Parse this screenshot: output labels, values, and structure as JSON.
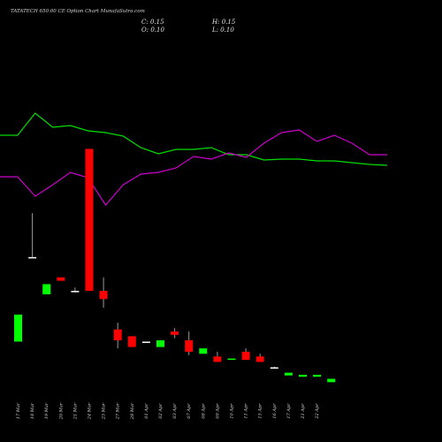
{
  "header": {
    "title": "TATATECH 650.00  CE Option  Chart MunafaSutra.com",
    "close": "C: 0.15",
    "open": "O: 0.10",
    "high": "H: 0.15",
    "low": "L: 0.10"
  },
  "colors": {
    "background": "#000000",
    "up": "#00ff00",
    "down": "#ff0000",
    "neutral": "#ffffff",
    "line_green": "#00dd00",
    "line_magenta": "#cc00cc",
    "wick": "#999999"
  },
  "chart_data": [
    {
      "type": "line",
      "title": "",
      "x": [
        "17 Mar",
        "18 Mar",
        "19 Mar",
        "20 Mar",
        "21 Mar",
        "24 Mar",
        "25 Mar",
        "26 Mar",
        "27 Mar",
        "28 Mar",
        "01 Apr",
        "02 Apr",
        "03 Apr",
        "04 Apr",
        "07 Apr",
        "08 Apr",
        "09 Apr",
        "11 Apr",
        "15 Apr",
        "16 Apr",
        "17 Apr",
        "21 Apr",
        "22 Apr"
      ],
      "series": [
        {
          "name": "",
          "color": "green",
          "values": [
            153,
            153,
            128,
            144,
            142,
            148,
            150,
            154,
            167,
            174,
            169,
            169,
            167,
            175,
            175,
            181,
            180,
            180,
            182,
            182,
            184,
            186,
            187
          ]
        },
        {
          "name": "",
          "color": "magenta",
          "values": [
            200,
            200,
            222,
            209,
            195,
            201,
            232,
            209,
            197,
            195,
            190,
            177,
            180,
            173,
            178,
            162,
            150,
            147,
            160,
            153,
            162,
            175,
            175
          ]
        }
      ],
      "ylim": [
        120,
        240
      ],
      "grid": false,
      "legend": "none"
    },
    {
      "type": "candlestick",
      "title": "",
      "categories": [
        "17 Mar",
        "18 Mar",
        "19 Mar",
        "20 Mar",
        "21 Mar",
        "24 Mar",
        "25 Mar",
        "27 Mar",
        "28 Mar",
        "01 Apr",
        "02 Apr",
        "03 Apr",
        "07 Apr",
        "08 Apr",
        "09 Apr",
        "10 Apr",
        "11 Apr",
        "15 Apr",
        "16 Apr",
        "17 Apr",
        "18 Apr",
        "21 Apr",
        "22 Apr"
      ],
      "candles": [
        {
          "open": 0.7,
          "close": 1.1,
          "high": 1.1,
          "low": 0.7,
          "dir": "up"
        },
        {
          "open": 1.95,
          "close": 1.95,
          "high": 2.6,
          "low": 1.95,
          "dir": "neutral"
        },
        {
          "open": 1.4,
          "close": 1.55,
          "high": 1.55,
          "low": 1.4,
          "dir": "up"
        },
        {
          "open": 1.65,
          "close": 1.6,
          "high": 1.65,
          "low": 1.6,
          "dir": "down"
        },
        {
          "open": 1.45,
          "close": 1.45,
          "high": 1.5,
          "low": 1.43,
          "dir": "neutral"
        },
        {
          "open": 3.55,
          "close": 1.45,
          "high": 3.55,
          "low": 1.45,
          "dir": "down"
        },
        {
          "open": 1.45,
          "close": 1.33,
          "high": 1.65,
          "low": 1.2,
          "dir": "down"
        },
        {
          "open": 0.88,
          "close": 0.72,
          "high": 0.98,
          "low": 0.6,
          "dir": "down"
        },
        {
          "open": 0.78,
          "close": 0.62,
          "high": 0.78,
          "low": 0.62,
          "dir": "down"
        },
        {
          "open": 0.7,
          "close": 0.7,
          "high": 0.7,
          "low": 0.7,
          "dir": "neutral"
        },
        {
          "open": 0.62,
          "close": 0.72,
          "high": 0.72,
          "low": 0.62,
          "dir": "up"
        },
        {
          "open": 0.85,
          "close": 0.8,
          "high": 0.9,
          "low": 0.75,
          "dir": "down"
        },
        {
          "open": 0.72,
          "close": 0.55,
          "high": 0.85,
          "low": 0.5,
          "dir": "down"
        },
        {
          "open": 0.52,
          "close": 0.6,
          "high": 0.6,
          "low": 0.52,
          "dir": "up"
        },
        {
          "open": 0.48,
          "close": 0.4,
          "high": 0.55,
          "low": 0.4,
          "dir": "down"
        },
        {
          "open": 0.43,
          "close": 0.45,
          "high": 0.45,
          "low": 0.43,
          "dir": "up"
        },
        {
          "open": 0.55,
          "close": 0.43,
          "high": 0.6,
          "low": 0.43,
          "dir": "down"
        },
        {
          "open": 0.48,
          "close": 0.4,
          "high": 0.52,
          "low": 0.4,
          "dir": "down"
        },
        {
          "open": 0.32,
          "close": 0.32,
          "high": 0.33,
          "low": 0.31,
          "dir": "neutral"
        },
        {
          "open": 0.2,
          "close": 0.24,
          "high": 0.24,
          "low": 0.2,
          "dir": "up"
        },
        {
          "open": 0.18,
          "close": 0.21,
          "high": 0.21,
          "low": 0.18,
          "dir": "up"
        },
        {
          "open": 0.18,
          "close": 0.21,
          "high": 0.21,
          "low": 0.18,
          "dir": "up"
        },
        {
          "open": 0.1,
          "close": 0.15,
          "high": 0.15,
          "low": 0.1,
          "dir": "up"
        }
      ],
      "x_tick_labels": [
        "17 Mar",
        "18 Mar",
        "19 Mar",
        "20 Mar",
        "21 Mar",
        "24 Mar",
        "25 Mar",
        "27 Mar",
        "28 Mar",
        "01 Apr",
        "02 Apr",
        "03 Apr",
        "07 Apr",
        "08 Apr",
        "09 Apr",
        "10 Apr",
        "11 Apr",
        "15 Apr",
        "16 Apr",
        "17 Apr",
        "21 Apr",
        "22 Apr"
      ],
      "grid": false,
      "legend": "none"
    }
  ]
}
